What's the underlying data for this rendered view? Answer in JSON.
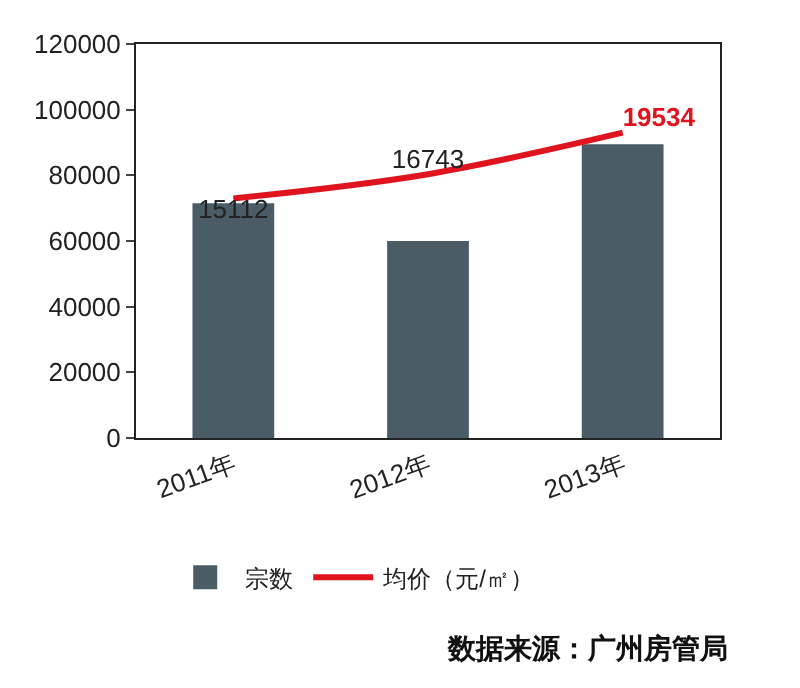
{
  "chart_data": {
    "type": "bar",
    "categories": [
      "2011年",
      "2012年",
      "2013年"
    ],
    "series": [
      {
        "name": "宗数",
        "color": "#4a5d66",
        "values": [
          71500,
          60000,
          89500
        ]
      },
      {
        "name": "均价（元/㎡）",
        "type": "line",
        "axis": "y2",
        "color": "#e0141e",
        "values": [
          15112,
          16743,
          19534
        ],
        "value_labels": [
          "15112",
          "16743",
          "19534"
        ]
      }
    ],
    "ylim": [
      0,
      120000
    ],
    "yticks": [
      0,
      20000,
      40000,
      60000,
      80000,
      100000,
      120000
    ],
    "y2lim": [
      -1000,
      25500
    ],
    "grid": false,
    "legend": "bottom",
    "marker": "none",
    "line_style": "solid",
    "annotations": [
      "数据来源：广州房管局"
    ]
  }
}
